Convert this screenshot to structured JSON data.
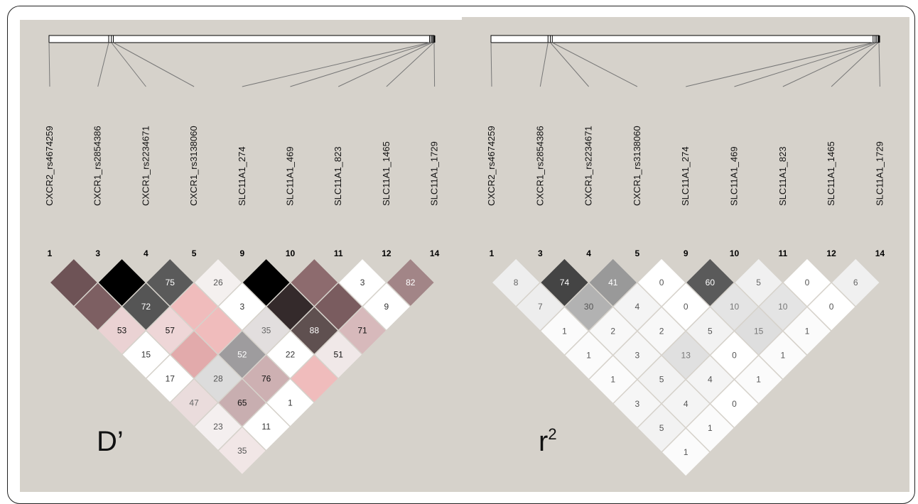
{
  "colors": {
    "panel_bg": "#d6d2cb",
    "frame_border": "#222222",
    "light_cell": "#f2f0ee",
    "pink_cell": "#f0bcbc"
  },
  "snp_names": [
    "CXCR2_rs4674259",
    "CXCR1_rs2854386",
    "CXCR1_rs2234671",
    "CXCR1_rs3138060",
    "SLC11A1_274",
    "SLC11A1_469",
    "SLC11A1_823",
    "SLC11A1_1465",
    "SLC11A1_1729"
  ],
  "snp_numbers": [
    "1",
    "3",
    "4",
    "5",
    "9",
    "10",
    "11",
    "12",
    "14"
  ],
  "panels": [
    {
      "label": "D’",
      "label_sup": "",
      "gene_ticks": [
        0.0,
        0.155,
        0.162,
        0.167,
        0.988,
        0.992,
        0.995,
        0.999,
        1.0
      ],
      "cells": [
        {
          "i": 0,
          "j": 1,
          "text": "",
          "color": "#6e5356",
          "text_color": "#ffffff"
        },
        {
          "i": 1,
          "j": 2,
          "text": "",
          "color": "#000000",
          "text_color": "#ffffff"
        },
        {
          "i": 2,
          "j": 3,
          "text": "75",
          "color": "#5a5a5a",
          "text_color": "#ffffff"
        },
        {
          "i": 3,
          "j": 4,
          "text": "26",
          "color": "#f4f0ef",
          "text_color": "#555555"
        },
        {
          "i": 4,
          "j": 5,
          "text": "",
          "color": "#000000",
          "text_color": "#ffffff"
        },
        {
          "i": 5,
          "j": 6,
          "text": "",
          "color": "#8d6b6e",
          "text_color": "#ffffff"
        },
        {
          "i": 6,
          "j": 7,
          "text": "3",
          "color": "#ffffff",
          "text_color": "#333333"
        },
        {
          "i": 7,
          "j": 8,
          "text": "82",
          "color": "#a28587",
          "text_color": "#ffffff"
        },
        {
          "i": 0,
          "j": 2,
          "text": "",
          "color": "#7d5f62",
          "text_color": "#ffffff"
        },
        {
          "i": 1,
          "j": 3,
          "text": "72",
          "color": "#555555",
          "text_color": "#ffffff"
        },
        {
          "i": 2,
          "j": 4,
          "text": "",
          "color": "#f0bcbc",
          "text_color": "#333333"
        },
        {
          "i": 3,
          "j": 5,
          "text": "3",
          "color": "#ffffff",
          "text_color": "#333333"
        },
        {
          "i": 4,
          "j": 6,
          "text": "",
          "color": "#342a2b",
          "text_color": "#ffffff"
        },
        {
          "i": 5,
          "j": 7,
          "text": "",
          "color": "#7a5c5f",
          "text_color": "#ffffff"
        },
        {
          "i": 6,
          "j": 8,
          "text": "9",
          "color": "#ffffff",
          "text_color": "#333333"
        },
        {
          "i": 0,
          "j": 3,
          "text": "53",
          "color": "#ead2d3",
          "text_color": "#111111"
        },
        {
          "i": 1,
          "j": 4,
          "text": "57",
          "color": "#eed6d7",
          "text_color": "#111111"
        },
        {
          "i": 2,
          "j": 5,
          "text": "",
          "color": "#f0bcbc",
          "text_color": "#333333"
        },
        {
          "i": 3,
          "j": 6,
          "text": "35",
          "color": "#e2dede",
          "text_color": "#666666"
        },
        {
          "i": 4,
          "j": 7,
          "text": "88",
          "color": "#5f5050",
          "text_color": "#ffffff"
        },
        {
          "i": 5,
          "j": 8,
          "text": "71",
          "color": "#d7b9bb",
          "text_color": "#111111"
        },
        {
          "i": 0,
          "j": 4,
          "text": "15",
          "color": "#ffffff",
          "text_color": "#333333"
        },
        {
          "i": 1,
          "j": 5,
          "text": "",
          "color": "#e2aaab",
          "text_color": "#333333"
        },
        {
          "i": 2,
          "j": 6,
          "text": "52",
          "color": "#9e9c9e",
          "text_color": "#ffffff"
        },
        {
          "i": 3,
          "j": 7,
          "text": "22",
          "color": "#ffffff",
          "text_color": "#333333"
        },
        {
          "i": 4,
          "j": 8,
          "text": "51",
          "color": "#f0e8e8",
          "text_color": "#111111"
        },
        {
          "i": 0,
          "j": 5,
          "text": "17",
          "color": "#ffffff",
          "text_color": "#333333"
        },
        {
          "i": 1,
          "j": 6,
          "text": "28",
          "color": "#dcdcdc",
          "text_color": "#555555"
        },
        {
          "i": 2,
          "j": 7,
          "text": "76",
          "color": "#cdb0b2",
          "text_color": "#111111"
        },
        {
          "i": 3,
          "j": 8,
          "text": "",
          "color": "#f0bcbc",
          "text_color": "#333333"
        },
        {
          "i": 0,
          "j": 6,
          "text": "47",
          "color": "#eadcdc",
          "text_color": "#666666"
        },
        {
          "i": 1,
          "j": 7,
          "text": "65",
          "color": "#c8aeb0",
          "text_color": "#111111"
        },
        {
          "i": 2,
          "j": 8,
          "text": "1",
          "color": "#ffffff",
          "text_color": "#333333"
        },
        {
          "i": 0,
          "j": 7,
          "text": "23",
          "color": "#f4efef",
          "text_color": "#555555"
        },
        {
          "i": 1,
          "j": 8,
          "text": "11",
          "color": "#ffffff",
          "text_color": "#333333"
        },
        {
          "i": 0,
          "j": 8,
          "text": "35",
          "color": "#f1e6e6",
          "text_color": "#555555"
        }
      ]
    },
    {
      "label": "r",
      "label_sup": "2",
      "gene_ticks": [
        0.0,
        0.147,
        0.153,
        0.158,
        0.985,
        0.99,
        0.994,
        0.998,
        1.0
      ],
      "cells": [
        {
          "i": 0,
          "j": 1,
          "text": "8",
          "color": "#eeeeee",
          "text_color": "#666666"
        },
        {
          "i": 1,
          "j": 2,
          "text": "74",
          "color": "#444444",
          "text_color": "#ffffff"
        },
        {
          "i": 2,
          "j": 3,
          "text": "41",
          "color": "#999999",
          "text_color": "#ffffff"
        },
        {
          "i": 3,
          "j": 4,
          "text": "0",
          "color": "#ffffff",
          "text_color": "#555555"
        },
        {
          "i": 4,
          "j": 5,
          "text": "60",
          "color": "#5a5a5a",
          "text_color": "#ffffff"
        },
        {
          "i": 5,
          "j": 6,
          "text": "5",
          "color": "#f0f0f0",
          "text_color": "#666666"
        },
        {
          "i": 6,
          "j": 7,
          "text": "0",
          "color": "#ffffff",
          "text_color": "#555555"
        },
        {
          "i": 7,
          "j": 8,
          "text": "6",
          "color": "#f0f0f0",
          "text_color": "#666666"
        },
        {
          "i": 0,
          "j": 2,
          "text": "7",
          "color": "#ededed",
          "text_color": "#666666"
        },
        {
          "i": 1,
          "j": 3,
          "text": "30",
          "color": "#b2b2b2",
          "text_color": "#555555"
        },
        {
          "i": 2,
          "j": 4,
          "text": "4",
          "color": "#f4f4f4",
          "text_color": "#555555"
        },
        {
          "i": 3,
          "j": 5,
          "text": "0",
          "color": "#ffffff",
          "text_color": "#555555"
        },
        {
          "i": 4,
          "j": 6,
          "text": "10",
          "color": "#e4e4e4",
          "text_color": "#777777"
        },
        {
          "i": 5,
          "j": 7,
          "text": "10",
          "color": "#e4e4e4",
          "text_color": "#777777"
        },
        {
          "i": 6,
          "j": 8,
          "text": "0",
          "color": "#ffffff",
          "text_color": "#555555"
        },
        {
          "i": 0,
          "j": 3,
          "text": "1",
          "color": "#fbfbfb",
          "text_color": "#555555"
        },
        {
          "i": 1,
          "j": 4,
          "text": "2",
          "color": "#f8f8f8",
          "text_color": "#555555"
        },
        {
          "i": 2,
          "j": 5,
          "text": "2",
          "color": "#f8f8f8",
          "text_color": "#555555"
        },
        {
          "i": 3,
          "j": 6,
          "text": "5",
          "color": "#f2f2f2",
          "text_color": "#555555"
        },
        {
          "i": 4,
          "j": 7,
          "text": "15",
          "color": "#dedede",
          "text_color": "#777777"
        },
        {
          "i": 5,
          "j": 8,
          "text": "1",
          "color": "#fbfbfb",
          "text_color": "#555555"
        },
        {
          "i": 0,
          "j": 4,
          "text": "1",
          "color": "#fbfbfb",
          "text_color": "#555555"
        },
        {
          "i": 1,
          "j": 5,
          "text": "3",
          "color": "#f6f6f6",
          "text_color": "#555555"
        },
        {
          "i": 2,
          "j": 6,
          "text": "13",
          "color": "#e0e0e0",
          "text_color": "#777777"
        },
        {
          "i": 3,
          "j": 7,
          "text": "0",
          "color": "#ffffff",
          "text_color": "#555555"
        },
        {
          "i": 4,
          "j": 8,
          "text": "1",
          "color": "#fbfbfb",
          "text_color": "#555555"
        },
        {
          "i": 0,
          "j": 5,
          "text": "1",
          "color": "#fbfbfb",
          "text_color": "#555555"
        },
        {
          "i": 1,
          "j": 6,
          "text": "5",
          "color": "#f2f2f2",
          "text_color": "#555555"
        },
        {
          "i": 2,
          "j": 7,
          "text": "4",
          "color": "#f4f4f4",
          "text_color": "#555555"
        },
        {
          "i": 3,
          "j": 8,
          "text": "1",
          "color": "#fbfbfb",
          "text_color": "#555555"
        },
        {
          "i": 0,
          "j": 6,
          "text": "3",
          "color": "#f6f6f6",
          "text_color": "#555555"
        },
        {
          "i": 1,
          "j": 7,
          "text": "4",
          "color": "#f4f4f4",
          "text_color": "#555555"
        },
        {
          "i": 2,
          "j": 8,
          "text": "0",
          "color": "#ffffff",
          "text_color": "#555555"
        },
        {
          "i": 0,
          "j": 7,
          "text": "5",
          "color": "#f2f2f2",
          "text_color": "#555555"
        },
        {
          "i": 1,
          "j": 8,
          "text": "1",
          "color": "#fbfbfb",
          "text_color": "#555555"
        },
        {
          "i": 0,
          "j": 8,
          "text": "1",
          "color": "#fbfbfb",
          "text_color": "#555555"
        }
      ]
    }
  ]
}
